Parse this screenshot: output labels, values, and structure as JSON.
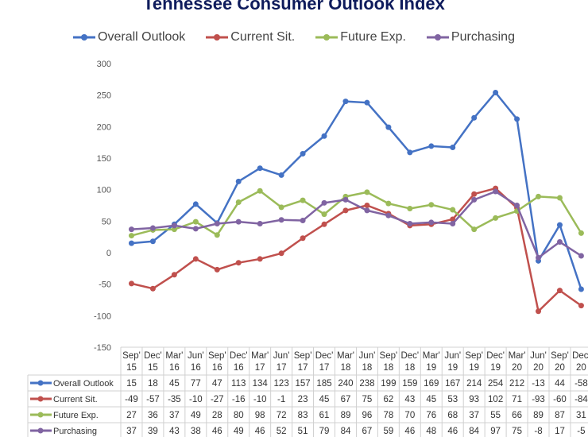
{
  "chart_data": {
    "type": "line",
    "title": "Tennessee Consumer Outlook Index",
    "xlabel": "",
    "ylabel": "",
    "ylim": [
      -150,
      300
    ],
    "yticks": [
      -150,
      -100,
      -50,
      0,
      50,
      100,
      150,
      200,
      250,
      300
    ],
    "grid": false,
    "legend_position": "top",
    "categories": [
      [
        "Sep'",
        "15"
      ],
      [
        "Dec'",
        "15"
      ],
      [
        "Mar'",
        "16"
      ],
      [
        "Jun'",
        "16"
      ],
      [
        "Sep'",
        "16"
      ],
      [
        "Dec'",
        "16"
      ],
      [
        "Mar'",
        "17"
      ],
      [
        "Jun'",
        "17"
      ],
      [
        "Sep'",
        "17"
      ],
      [
        "Dec'",
        "17"
      ],
      [
        "Mar'",
        "18"
      ],
      [
        "Jun'",
        "18"
      ],
      [
        "Sep'",
        "18"
      ],
      [
        "Dec'",
        "18"
      ],
      [
        "Mar'",
        "19"
      ],
      [
        "Jun'",
        "19"
      ],
      [
        "Sep'",
        "19"
      ],
      [
        "Dec'",
        "19"
      ],
      [
        "Mar'",
        "20"
      ],
      [
        "Jun'",
        "20"
      ],
      [
        "Sep'",
        "20"
      ],
      [
        "Dec'",
        "20"
      ]
    ],
    "series": [
      {
        "name": "Overall Outlook",
        "color": "#4472C4",
        "values": [
          15,
          18,
          45,
          77,
          47,
          113,
          134,
          123,
          157,
          185,
          240,
          238,
          199,
          159,
          169,
          167,
          214,
          254,
          212,
          -13,
          44,
          -58
        ]
      },
      {
        "name": "Current Sit.",
        "color": "#C0504D",
        "values": [
          -49,
          -57,
          -35,
          -10,
          -27,
          -16,
          -10,
          -1,
          23,
          45,
          67,
          75,
          62,
          43,
          45,
          53,
          93,
          102,
          71,
          -93,
          -60,
          -84
        ]
      },
      {
        "name": "Future Exp.",
        "color": "#9BBB59",
        "values": [
          27,
          36,
          37,
          49,
          28,
          80,
          98,
          72,
          83,
          61,
          89,
          96,
          78,
          70,
          76,
          68,
          37,
          55,
          66,
          89,
          87,
          31
        ]
      },
      {
        "name": "Purchasing",
        "color": "#8064A2",
        "values": [
          37,
          39,
          43,
          38,
          46,
          49,
          46,
          52,
          51,
          79,
          84,
          67,
          59,
          46,
          48,
          46,
          84,
          97,
          75,
          -8,
          17,
          -5
        ]
      }
    ]
  }
}
